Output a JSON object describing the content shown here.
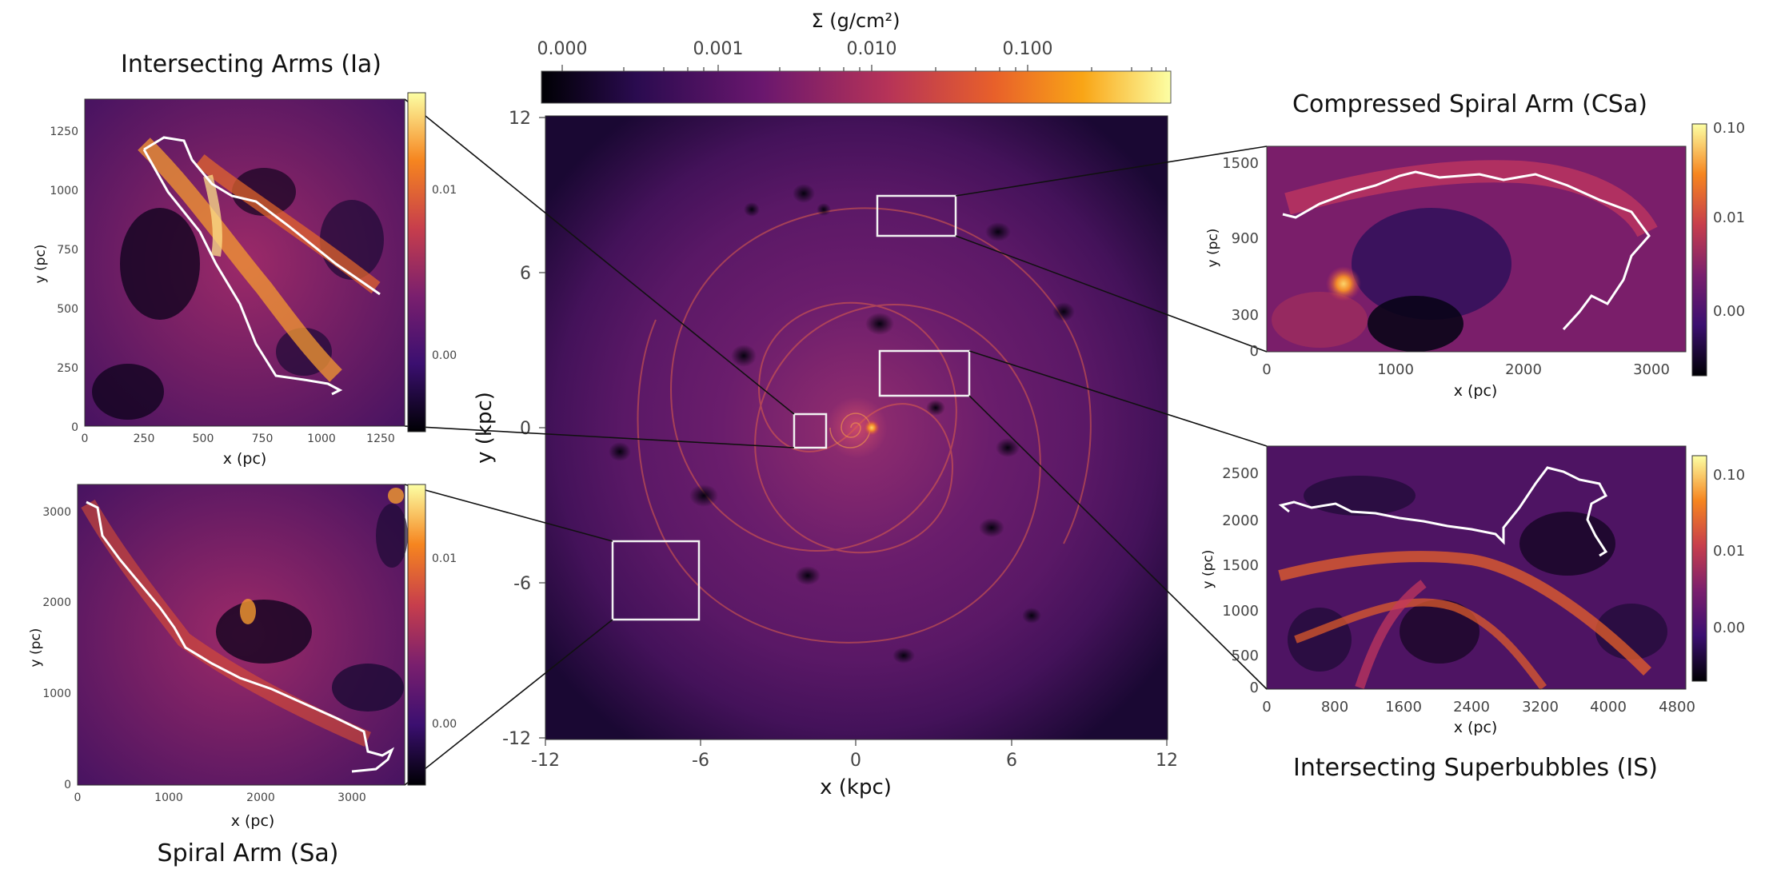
{
  "colorbar": {
    "label": "Σ (g/cm²)",
    "ticks": [
      "0.000",
      "0.001",
      "0.010",
      "0.100"
    ]
  },
  "main_map": {
    "x_label": "x (kpc)",
    "y_label": "y (kpc)",
    "x_ticks": [
      "-12",
      "-6",
      "0",
      "6",
      "12"
    ],
    "y_ticks": [
      "12",
      "6",
      "0",
      "-6",
      "-12"
    ]
  },
  "panels": {
    "ia": {
      "title": "Intersecting Arms (Ia)",
      "x_label": "x (pc)",
      "y_label": "y (pc)",
      "x_ticks": [
        "0",
        "250",
        "500",
        "750",
        "1000",
        "1250"
      ],
      "y_ticks": [
        "1250",
        "1000",
        "750",
        "500",
        "250",
        "0"
      ],
      "cb_ticks": [
        "0.01",
        "0.00"
      ]
    },
    "sa": {
      "title": "Spiral Arm (Sa)",
      "x_label": "x (pc)",
      "y_label": "y (pc)",
      "x_ticks": [
        "0",
        "1000",
        "2000",
        "3000"
      ],
      "y_ticks": [
        "3000",
        "2000",
        "1000",
        "0"
      ],
      "cb_ticks": [
        "0.01",
        "0.00"
      ]
    },
    "csa": {
      "title": "Compressed Spiral Arm (CSa)",
      "x_label": "x (pc)",
      "y_label": "y (pc)",
      "x_ticks": [
        "0",
        "1000",
        "2000",
        "3000"
      ],
      "y_ticks": [
        "1500",
        "900",
        "300",
        "0"
      ],
      "cb_ticks": [
        "0.10",
        "0.01",
        "0.00"
      ]
    },
    "is": {
      "title": "Intersecting Superbubbles (IS)",
      "x_label": "x (pc)",
      "y_label": "y (pc)",
      "x_ticks": [
        "0",
        "800",
        "1600",
        "2400",
        "3200",
        "4000",
        "4800"
      ],
      "y_ticks": [
        "2500",
        "2000",
        "1500",
        "1000",
        "500",
        "0"
      ],
      "cb_ticks": [
        "0.10",
        "0.01",
        "0.00"
      ]
    }
  }
}
